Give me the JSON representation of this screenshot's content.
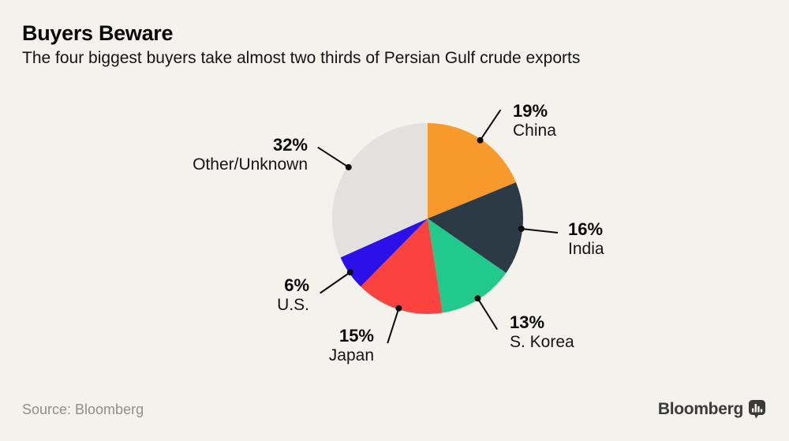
{
  "header": {
    "title": "Buyers Beware",
    "subtitle": "The four biggest buyers take almost two thirds of Persian Gulf crude exports"
  },
  "chart_data": {
    "type": "pie",
    "title": "Buyers Beware",
    "subtitle": "The four biggest buyers take almost two thirds of Persian Gulf crude exports",
    "start_angle_deg": 0,
    "direction": "clockwise",
    "legend": "none",
    "leader_line_color": "#0D0D0D",
    "series": [
      {
        "label": "China",
        "value": 19,
        "display": "19%",
        "color": "#F8992B"
      },
      {
        "label": "India",
        "value": 16,
        "display": "16%",
        "color": "#2C3A46"
      },
      {
        "label": "S. Korea",
        "value": 13,
        "display": "13%",
        "color": "#22C98C"
      },
      {
        "label": "Japan",
        "value": 15,
        "display": "15%",
        "color": "#FA423E"
      },
      {
        "label": "U.S.",
        "value": 6,
        "display": "6%",
        "color": "#2B10E8"
      },
      {
        "label": "Other/Unknown",
        "value": 32,
        "display": "32%",
        "color": "#E2E1DE"
      }
    ]
  },
  "footer": {
    "source": "Source: Bloomberg",
    "brand": "Bloomberg",
    "brand_icon": "bloomberg-terminal-icon"
  },
  "colors": {
    "background": "#F3F2ED",
    "text": "#0A0A0A",
    "muted_text": "#8F8E88",
    "brand_text": "#3B3B39"
  }
}
